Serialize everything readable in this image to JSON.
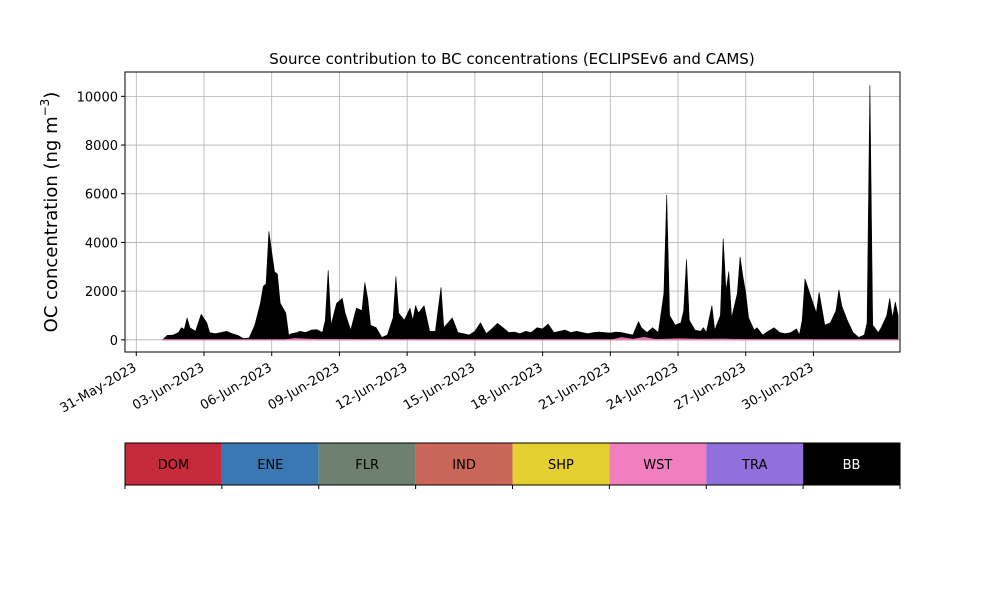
{
  "chart_data": {
    "type": "area",
    "title": "Source contribution to BC concentrations (ECLIPSEv6 and CAMS)",
    "ylabel": "OC concentration (ng m",
    "ylabel_sup": "−3",
    "ylabel_close": ")",
    "xlabel": "",
    "grid": true,
    "xlim": [
      "2023-05-30T12:00",
      "2023-07-03T20:00"
    ],
    "ylim": [
      -500,
      11000
    ],
    "y_ticks": [
      0,
      2000,
      4000,
      6000,
      8000,
      10000
    ],
    "y_tick_labels": [
      "0",
      "2000",
      "4000",
      "6000",
      "8000",
      "10000"
    ],
    "x_ticks": [
      "2023-05-31",
      "2023-06-03",
      "2023-06-06",
      "2023-06-09",
      "2023-06-12",
      "2023-06-15",
      "2023-06-18",
      "2023-06-21",
      "2023-06-24",
      "2023-06-27",
      "2023-06-30"
    ],
    "x_tick_labels": [
      "31-May-2023",
      "03-Jun-2023",
      "06-Jun-2023",
      "09-Jun-2023",
      "12-Jun-2023",
      "15-Jun-2023",
      "18-Jun-2023",
      "21-Jun-2023",
      "24-Jun-2023",
      "27-Jun-2023",
      "30-Jun-2023"
    ],
    "series_colors": {
      "DOM": "#c62a3b",
      "ENE": "#3a78b3",
      "FLR": "#6e8070",
      "IND": "#c96659",
      "SHP": "#e5d032",
      "WST": "#f17fbf",
      "TRA": "#9170dc",
      "BB": "#000000"
    },
    "legend": {
      "placement": "below",
      "entries": [
        {
          "label": "DOM",
          "color": "#c62a3b",
          "text_color": "#000000"
        },
        {
          "label": "ENE",
          "color": "#3a78b3",
          "text_color": "#000000"
        },
        {
          "label": "FLR",
          "color": "#6e8070",
          "text_color": "#000000"
        },
        {
          "label": "IND",
          "color": "#c96659",
          "text_color": "#000000"
        },
        {
          "label": "SHP",
          "color": "#e5d032",
          "text_color": "#000000"
        },
        {
          "label": "WST",
          "color": "#f17fbf",
          "text_color": "#000000"
        },
        {
          "label": "TRA",
          "color": "#9170dc",
          "text_color": "#000000"
        },
        {
          "label": "BB",
          "color": "#000000",
          "text_color": "#ffffff"
        }
      ]
    },
    "wst_series": {
      "name": "WST",
      "points": [
        [
          "2023-06-06T12:00",
          0
        ],
        [
          "2023-06-07T00:00",
          70
        ],
        [
          "2023-06-07T12:00",
          50
        ],
        [
          "2023-06-08T00:00",
          30
        ],
        [
          "2023-06-21T00:00",
          0
        ],
        [
          "2023-06-21T12:00",
          110
        ],
        [
          "2023-06-22T00:00",
          40
        ],
        [
          "2023-06-22T12:00",
          120
        ],
        [
          "2023-06-23T00:00",
          30
        ],
        [
          "2023-06-24T00:00",
          60
        ],
        [
          "2023-06-25T00:00",
          40
        ],
        [
          "2023-06-26T00:00",
          50
        ],
        [
          "2023-06-27T00:00",
          20
        ],
        [
          "2023-06-30T00:00",
          20
        ]
      ]
    },
    "bb_series": {
      "name": "BB",
      "points": [
        [
          "2023-06-01T04:00",
          0
        ],
        [
          "2023-06-01T09:00",
          180
        ],
        [
          "2023-06-01T15:00",
          200
        ],
        [
          "2023-06-01T21:00",
          300
        ],
        [
          "2023-06-02T00:00",
          500
        ],
        [
          "2023-06-02T03:00",
          430
        ],
        [
          "2023-06-02T06:00",
          900
        ],
        [
          "2023-06-02T09:00",
          500
        ],
        [
          "2023-06-02T15:00",
          350
        ],
        [
          "2023-06-02T21:00",
          1050
        ],
        [
          "2023-06-03T03:00",
          700
        ],
        [
          "2023-06-03T06:00",
          300
        ],
        [
          "2023-06-03T12:00",
          250
        ],
        [
          "2023-06-03T18:00",
          300
        ],
        [
          "2023-06-04T00:00",
          350
        ],
        [
          "2023-06-04T06:00",
          250
        ],
        [
          "2023-06-04T12:00",
          180
        ],
        [
          "2023-06-04T18:00",
          50
        ],
        [
          "2023-06-05T00:00",
          80
        ],
        [
          "2023-06-05T06:00",
          600
        ],
        [
          "2023-06-05T12:00",
          1500
        ],
        [
          "2023-06-05T15:00",
          2200
        ],
        [
          "2023-06-05T18:00",
          2300
        ],
        [
          "2023-06-05T21:00",
          4450
        ],
        [
          "2023-06-06T00:00",
          3600
        ],
        [
          "2023-06-06T03:00",
          2800
        ],
        [
          "2023-06-06T06:00",
          2700
        ],
        [
          "2023-06-06T09:00",
          1500
        ],
        [
          "2023-06-06T15:00",
          1100
        ],
        [
          "2023-06-06T18:00",
          200
        ],
        [
          "2023-06-06T21:00",
          250
        ],
        [
          "2023-06-07T03:00",
          300
        ],
        [
          "2023-06-07T06:00",
          350
        ],
        [
          "2023-06-07T12:00",
          300
        ],
        [
          "2023-06-07T18:00",
          400
        ],
        [
          "2023-06-08T00:00",
          420
        ],
        [
          "2023-06-08T06:00",
          300
        ],
        [
          "2023-06-08T09:00",
          800
        ],
        [
          "2023-06-08T12:00",
          2850
        ],
        [
          "2023-06-08T15:00",
          600
        ],
        [
          "2023-06-08T21:00",
          1500
        ],
        [
          "2023-06-09T03:00",
          1700
        ],
        [
          "2023-06-09T06:00",
          1100
        ],
        [
          "2023-06-09T12:00",
          400
        ],
        [
          "2023-06-09T18:00",
          1300
        ],
        [
          "2023-06-10T00:00",
          1200
        ],
        [
          "2023-06-10T03:00",
          2350
        ],
        [
          "2023-06-10T06:00",
          1700
        ],
        [
          "2023-06-10T09:00",
          600
        ],
        [
          "2023-06-10T15:00",
          500
        ],
        [
          "2023-06-10T21:00",
          100
        ],
        [
          "2023-06-11T03:00",
          200
        ],
        [
          "2023-06-11T09:00",
          900
        ],
        [
          "2023-06-11T12:00",
          2600
        ],
        [
          "2023-06-11T15:00",
          1100
        ],
        [
          "2023-06-11T21:00",
          800
        ],
        [
          "2023-06-12T03:00",
          1300
        ],
        [
          "2023-06-12T06:00",
          800
        ],
        [
          "2023-06-12T09:00",
          1400
        ],
        [
          "2023-06-12T12:00",
          1100
        ],
        [
          "2023-06-12T18:00",
          1400
        ],
        [
          "2023-06-13T00:00",
          350
        ],
        [
          "2023-06-13T06:00",
          350
        ],
        [
          "2023-06-13T12:00",
          2150
        ],
        [
          "2023-06-13T15:00",
          500
        ],
        [
          "2023-06-14T00:00",
          900
        ],
        [
          "2023-06-14T06:00",
          300
        ],
        [
          "2023-06-14T12:00",
          250
        ],
        [
          "2023-06-14T18:00",
          200
        ],
        [
          "2023-06-15T00:00",
          350
        ],
        [
          "2023-06-15T06:00",
          700
        ],
        [
          "2023-06-15T12:00",
          250
        ],
        [
          "2023-06-15T18:00",
          450
        ],
        [
          "2023-06-16T00:00",
          680
        ],
        [
          "2023-06-16T06:00",
          500
        ],
        [
          "2023-06-16T12:00",
          300
        ],
        [
          "2023-06-16T18:00",
          320
        ],
        [
          "2023-06-17T00:00",
          250
        ],
        [
          "2023-06-17T06:00",
          350
        ],
        [
          "2023-06-17T12:00",
          300
        ],
        [
          "2023-06-17T18:00",
          500
        ],
        [
          "2023-06-18T00:00",
          450
        ],
        [
          "2023-06-18T06:00",
          650
        ],
        [
          "2023-06-18T12:00",
          300
        ],
        [
          "2023-06-19T00:00",
          400
        ],
        [
          "2023-06-19T06:00",
          300
        ],
        [
          "2023-06-19T12:00",
          350
        ],
        [
          "2023-06-20T00:00",
          250
        ],
        [
          "2023-06-20T06:00",
          300
        ],
        [
          "2023-06-20T12:00",
          320
        ],
        [
          "2023-06-21T00:00",
          280
        ],
        [
          "2023-06-21T06:00",
          320
        ],
        [
          "2023-06-21T12:00",
          300
        ],
        [
          "2023-06-22T00:00",
          200
        ],
        [
          "2023-06-22T06:00",
          750
        ],
        [
          "2023-06-22T09:00",
          500
        ],
        [
          "2023-06-22T15:00",
          300
        ],
        [
          "2023-06-22T21:00",
          500
        ],
        [
          "2023-06-23T03:00",
          300
        ],
        [
          "2023-06-23T09:00",
          1900
        ],
        [
          "2023-06-23T12:00",
          5950
        ],
        [
          "2023-06-23T15:00",
          1000
        ],
        [
          "2023-06-23T21:00",
          600
        ],
        [
          "2023-06-24T03:00",
          700
        ],
        [
          "2023-06-24T06:00",
          1200
        ],
        [
          "2023-06-24T09:00",
          3300
        ],
        [
          "2023-06-24T12:00",
          800
        ],
        [
          "2023-06-24T18:00",
          400
        ],
        [
          "2023-06-25T00:00",
          350
        ],
        [
          "2023-06-25T03:00",
          500
        ],
        [
          "2023-06-25T06:00",
          300
        ],
        [
          "2023-06-25T12:00",
          1400
        ],
        [
          "2023-06-25T15:00",
          400
        ],
        [
          "2023-06-25T21:00",
          1000
        ],
        [
          "2023-06-26T00:00",
          4150
        ],
        [
          "2023-06-26T03:00",
          2000
        ],
        [
          "2023-06-26T06:00",
          2800
        ],
        [
          "2023-06-26T09:00",
          900
        ],
        [
          "2023-06-26T15:00",
          1900
        ],
        [
          "2023-06-26T18:00",
          3400
        ],
        [
          "2023-06-26T21:00",
          2600
        ],
        [
          "2023-06-27T00:00",
          1900
        ],
        [
          "2023-06-27T03:00",
          900
        ],
        [
          "2023-06-27T09:00",
          400
        ],
        [
          "2023-06-27T12:00",
          500
        ],
        [
          "2023-06-27T18:00",
          200
        ],
        [
          "2023-06-28T00:00",
          350
        ],
        [
          "2023-06-28T06:00",
          500
        ],
        [
          "2023-06-28T12:00",
          300
        ],
        [
          "2023-06-28T18:00",
          250
        ],
        [
          "2023-06-29T00:00",
          300
        ],
        [
          "2023-06-29T06:00",
          450
        ],
        [
          "2023-06-29T09:00",
          200
        ],
        [
          "2023-06-29T12:00",
          800
        ],
        [
          "2023-06-29T15:00",
          2500
        ],
        [
          "2023-06-29T21:00",
          1800
        ],
        [
          "2023-06-30T03:00",
          1100
        ],
        [
          "2023-06-30T06:00",
          1950
        ],
        [
          "2023-06-30T12:00",
          600
        ],
        [
          "2023-06-30T18:00",
          700
        ],
        [
          "2023-07-01T00:00",
          1200
        ],
        [
          "2023-07-01T03:00",
          2050
        ],
        [
          "2023-07-01T06:00",
          1400
        ],
        [
          "2023-07-01T12:00",
          800
        ],
        [
          "2023-07-01T18:00",
          300
        ],
        [
          "2023-07-02T00:00",
          100
        ],
        [
          "2023-07-02T06:00",
          200
        ],
        [
          "2023-07-02T09:00",
          700
        ],
        [
          "2023-07-02T12:00",
          10450
        ],
        [
          "2023-07-02T15:00",
          600
        ],
        [
          "2023-07-02T21:00",
          300
        ],
        [
          "2023-07-03T00:00",
          500
        ],
        [
          "2023-07-03T06:00",
          1000
        ],
        [
          "2023-07-03T09:00",
          1700
        ],
        [
          "2023-07-03T12:00",
          900
        ],
        [
          "2023-07-03T15:00",
          1550
        ],
        [
          "2023-07-03T18:00",
          1000
        ]
      ]
    }
  }
}
